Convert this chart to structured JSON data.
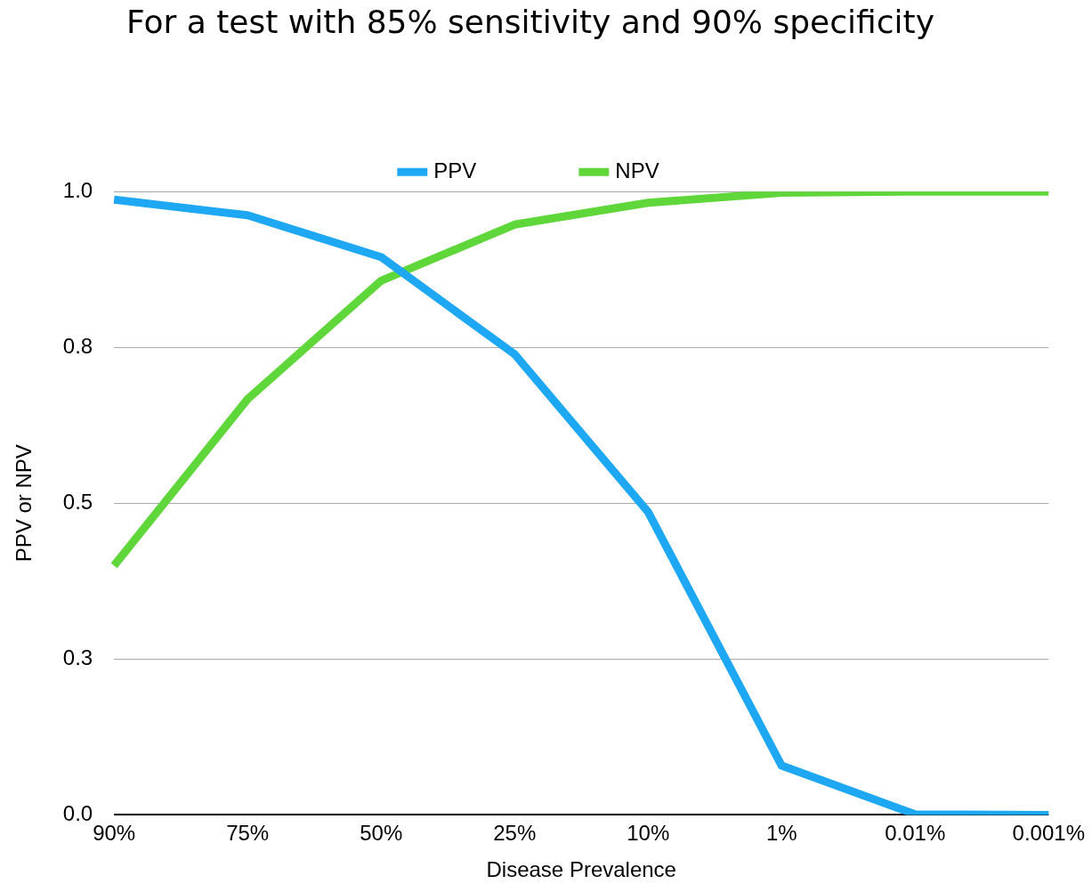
{
  "chart_data": {
    "type": "line",
    "title": "For a test with 85% sensitivity and 90% specificity",
    "xlabel": "Disease Prevalence",
    "ylabel": "PPV or NPV",
    "categories": [
      "90%",
      "75%",
      "50%",
      "25%",
      "10%",
      "1%",
      "0.01%",
      "0.001%"
    ],
    "series": [
      {
        "name": "PPV",
        "color": "#1ea7f2",
        "values": [
          0.987,
          0.962,
          0.895,
          0.739,
          0.486,
          0.079,
          0.001,
          0.0
        ]
      },
      {
        "name": "NPV",
        "color": "#5fd63a",
        "values": [
          0.4,
          0.667,
          0.857,
          0.947,
          0.982,
          0.998,
          1.0,
          1.0
        ]
      }
    ],
    "ylim": [
      0,
      1
    ],
    "yticks": [
      {
        "value": 0,
        "label": "0.0"
      },
      {
        "value": 0.25,
        "label": "0.3"
      },
      {
        "value": 0.5,
        "label": "0.5"
      },
      {
        "value": 0.75,
        "label": "0.8"
      },
      {
        "value": 1,
        "label": "1.0"
      }
    ],
    "grid": "y",
    "legend": "top",
    "marker": "none",
    "line_style": "solid"
  }
}
